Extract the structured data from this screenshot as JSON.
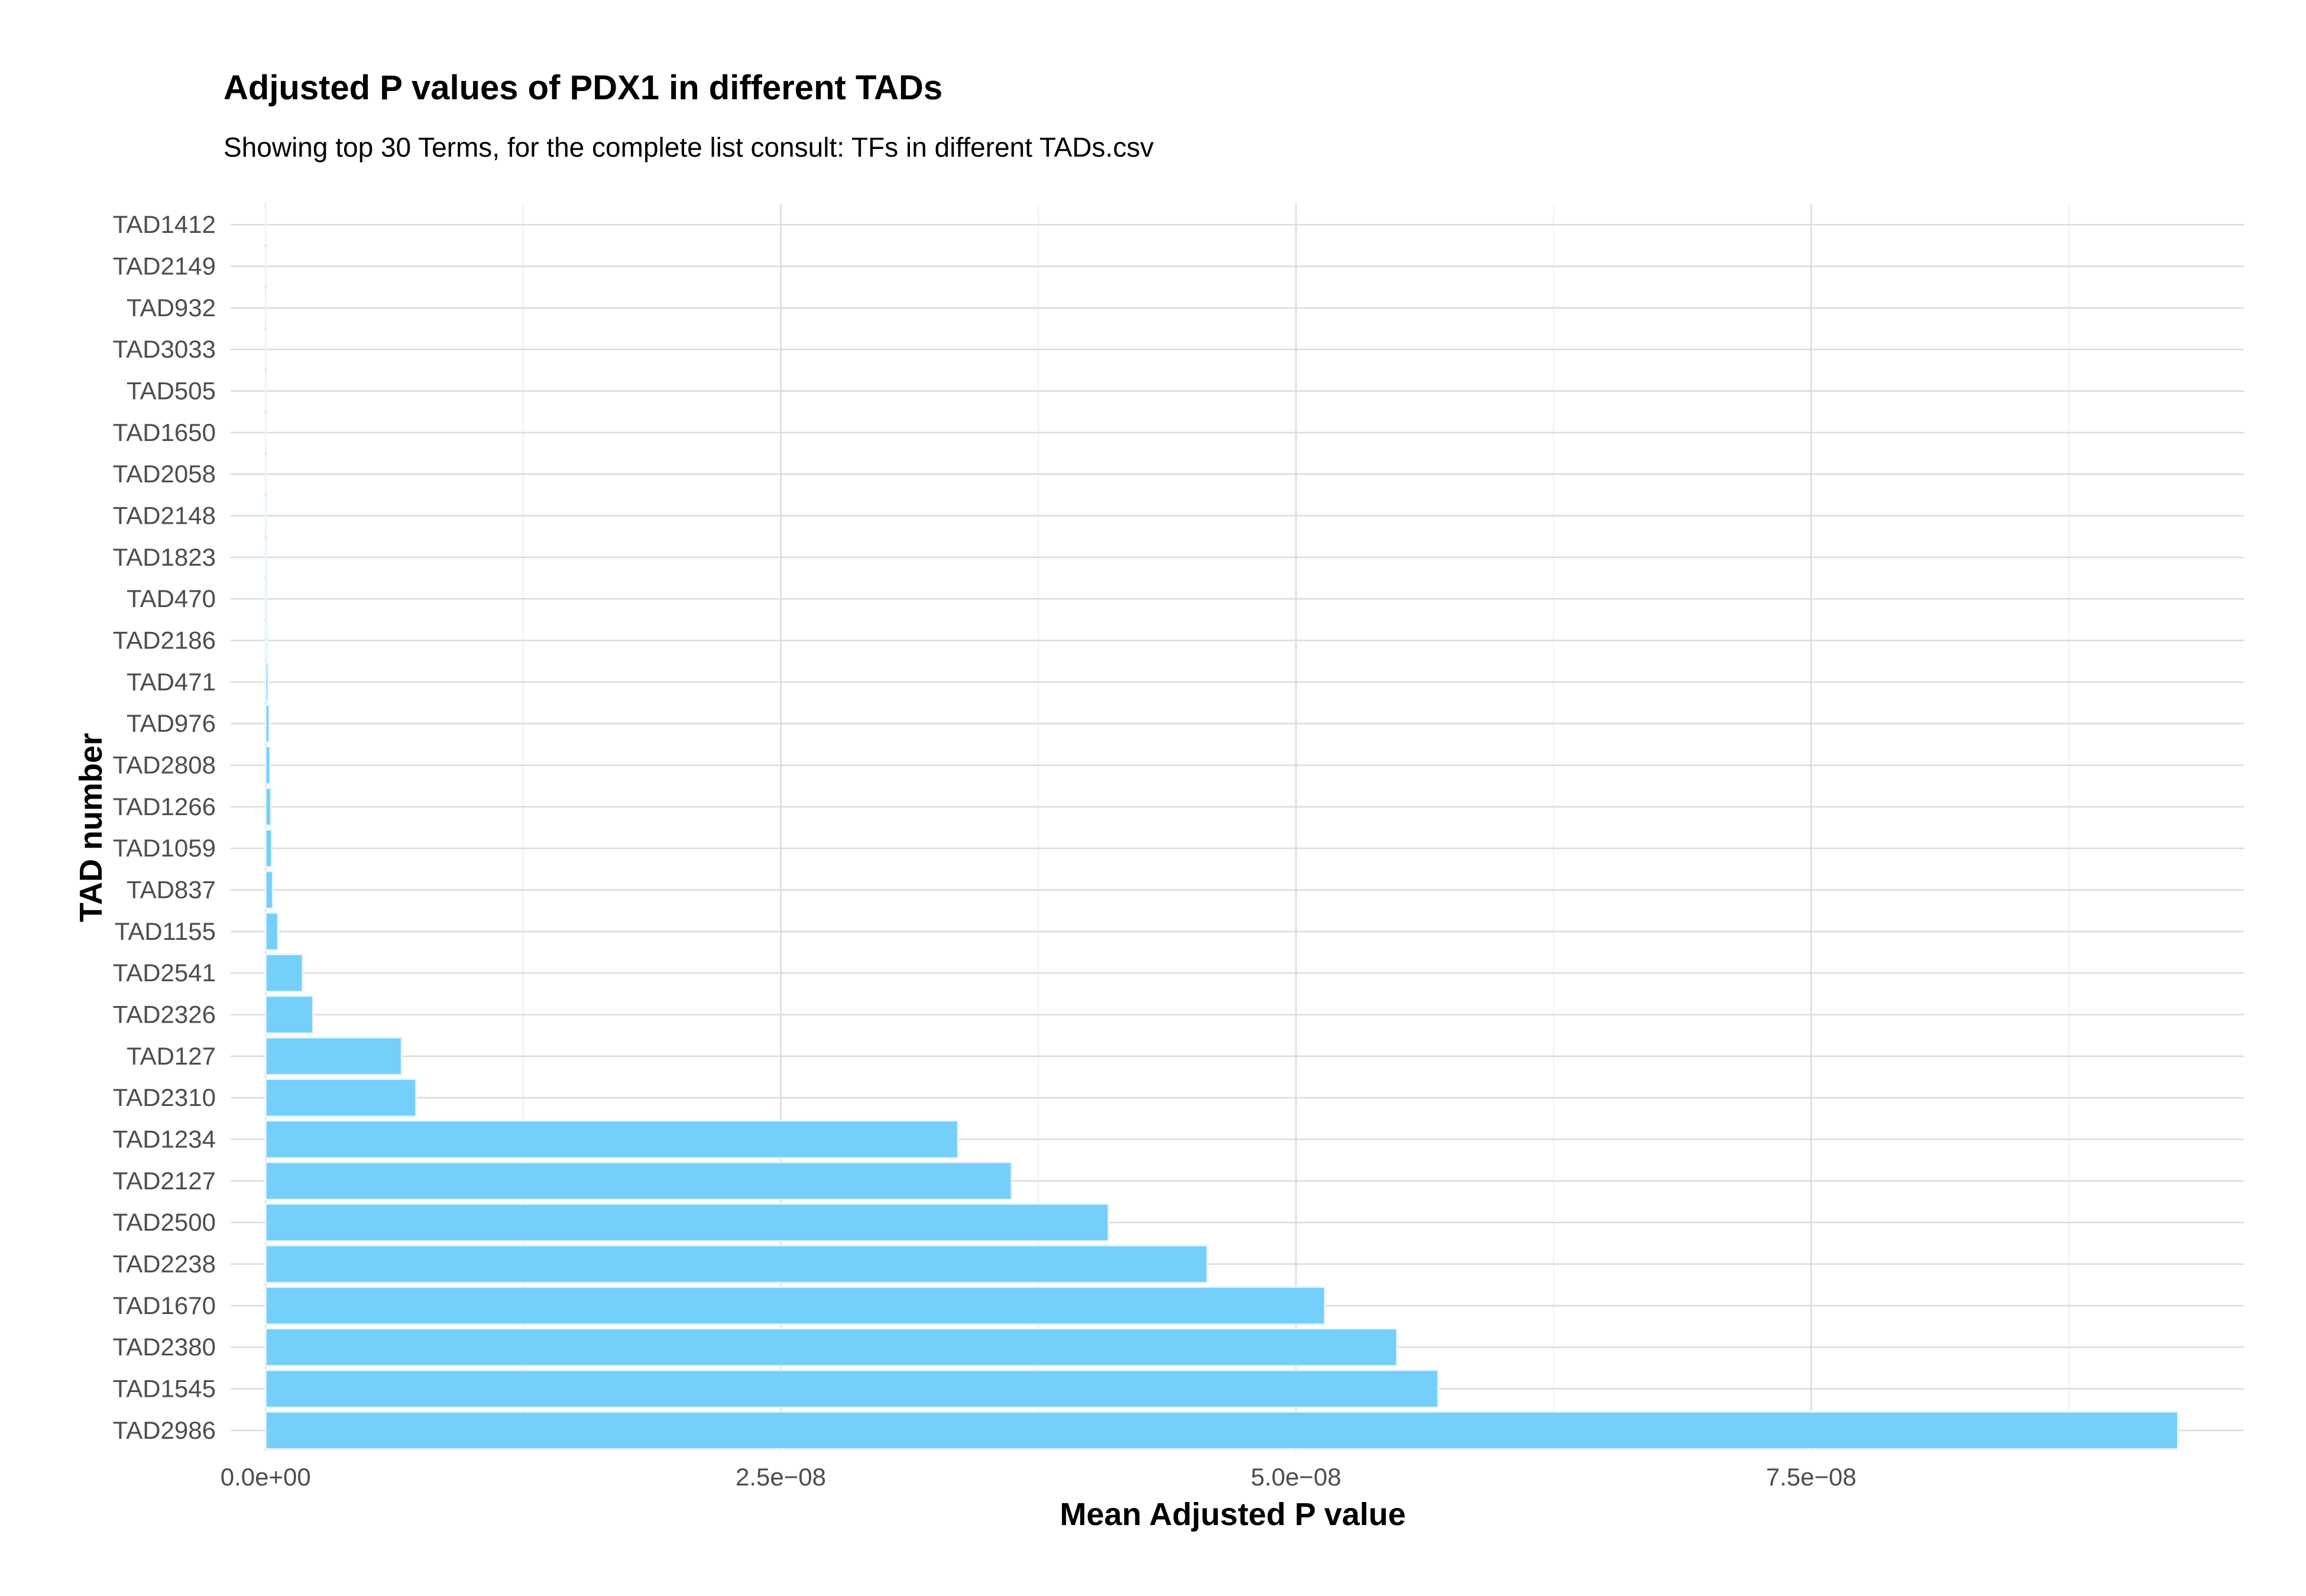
{
  "chart_data": {
    "type": "bar",
    "orientation": "horizontal",
    "title": "Adjusted P values of PDX1 in different TADs",
    "subtitle": "Showing top 30 Terms, for the complete list consult: TFs in different TADs.csv",
    "xlabel": "Mean Adjusted P value",
    "ylabel": "TAD number",
    "xlim": [
      -1.7e-09,
      9.6e-08
    ],
    "x_ticks": [
      0,
      2.5e-08,
      5e-08,
      7.5e-08
    ],
    "x_tick_labels": [
      "0.0e+00",
      "2.5e−08",
      "5.0e−08",
      "7.5e−08"
    ],
    "grid": true,
    "bar_color": "#75cffb",
    "categories": [
      "TAD1412",
      "TAD2149",
      "TAD932",
      "TAD3033",
      "TAD505",
      "TAD1650",
      "TAD2058",
      "TAD2148",
      "TAD1823",
      "TAD470",
      "TAD2186",
      "TAD471",
      "TAD976",
      "TAD2808",
      "TAD1266",
      "TAD1059",
      "TAD837",
      "TAD1155",
      "TAD2541",
      "TAD2326",
      "TAD127",
      "TAD2310",
      "TAD1234",
      "TAD2127",
      "TAD2500",
      "TAD2238",
      "TAD1670",
      "TAD2380",
      "TAD1545",
      "TAD2986"
    ],
    "values": [
      1e-13,
      2e-13,
      5e-13,
      1e-12,
      2e-12,
      5e-12,
      1e-11,
      2e-11,
      3e-11,
      5e-11,
      8e-11,
      1.2e-10,
      1.8e-10,
      2.2e-10,
      2.6e-10,
      3e-10,
      3.5e-10,
      6e-10,
      1.8e-09,
      2.3e-09,
      6.6e-09,
      7.3e-09,
      3.36e-08,
      3.62e-08,
      4.09e-08,
      4.57e-08,
      5.14e-08,
      5.49e-08,
      5.69e-08,
      9.28e-08
    ]
  }
}
